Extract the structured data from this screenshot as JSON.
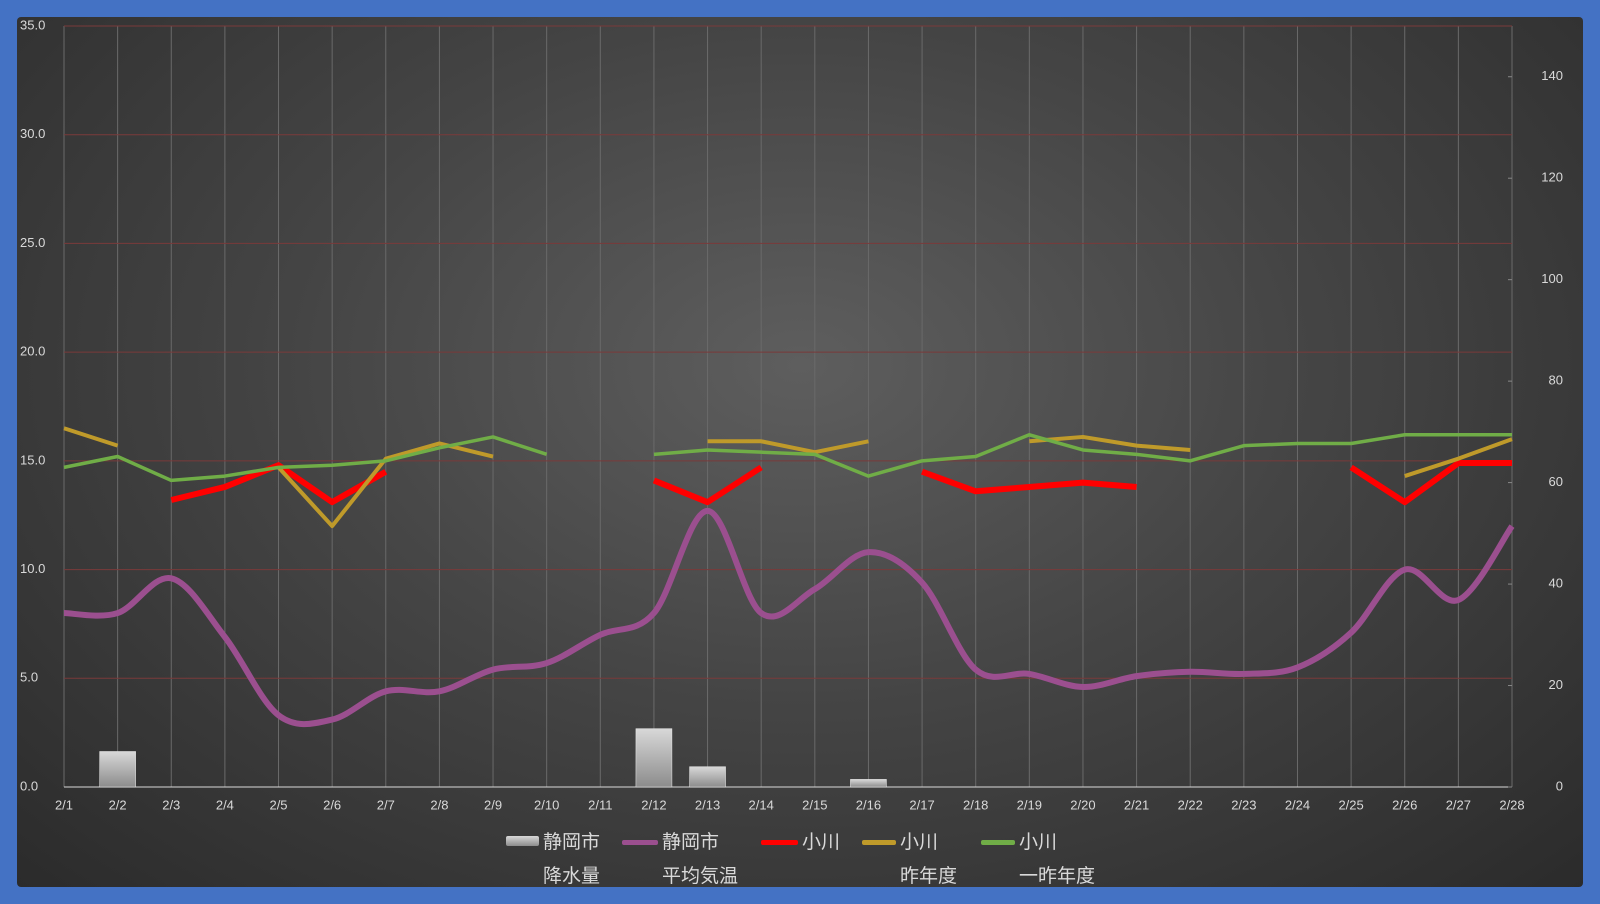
{
  "chart_data": {
    "type": "line",
    "categories": [
      "2/1",
      "2/2",
      "2/3",
      "2/4",
      "2/5",
      "2/6",
      "2/7",
      "2/8",
      "2/9",
      "2/10",
      "2/11",
      "2/12",
      "2/13",
      "2/14",
      "2/15",
      "2/16",
      "2/17",
      "2/18",
      "2/19",
      "2/20",
      "2/21",
      "2/22",
      "2/23",
      "2/24",
      "2/25",
      "2/26",
      "2/27",
      "2/28"
    ],
    "ylim": [
      0,
      35
    ],
    "yticks": [
      {
        "value": 0,
        "label": "0.0"
      },
      {
        "value": 5,
        "label": "5.0"
      },
      {
        "value": 10,
        "label": "10.0"
      },
      {
        "value": 15,
        "label": "15.0"
      },
      {
        "value": 20,
        "label": "20.0"
      },
      {
        "value": 25,
        "label": "25.0"
      },
      {
        "value": 30,
        "label": "30.0"
      },
      {
        "value": 35,
        "label": "35.0"
      }
    ],
    "y2lim": [
      0,
      150
    ],
    "y2ticks": [
      0,
      20,
      40,
      60,
      80,
      100,
      120,
      140
    ],
    "grid": true,
    "legend": "bottom",
    "series": [
      {
        "name": "静岡市\n降水量",
        "type": "bar",
        "axis": "y2",
        "color": "#bfbfbf",
        "values": [
          0,
          7,
          0,
          0,
          0,
          0,
          0,
          0,
          0,
          0,
          0,
          11.5,
          4,
          0,
          0,
          1.5,
          0,
          0,
          0,
          0,
          0,
          0,
          0,
          0,
          0,
          0,
          0,
          0
        ]
      },
      {
        "name": "静岡市\n平均気温",
        "type": "line",
        "smooth": true,
        "color": "#9b4f8f",
        "values": [
          8.0,
          8.0,
          9.6,
          6.9,
          3.3,
          3.1,
          4.4,
          4.4,
          5.4,
          5.7,
          7.0,
          8.0,
          12.7,
          8.0,
          9.1,
          10.8,
          9.4,
          5.4,
          5.2,
          4.6,
          5.1,
          5.3,
          5.2,
          5.5,
          7.1,
          10.0,
          8.6,
          12.0
        ]
      },
      {
        "name": "小川",
        "type": "line",
        "color": "#ff0000",
        "values": [
          null,
          null,
          13.2,
          13.8,
          14.8,
          13.1,
          14.5,
          null,
          null,
          null,
          null,
          14.1,
          13.1,
          14.7,
          null,
          null,
          14.5,
          13.6,
          13.8,
          14.0,
          13.8,
          null,
          null,
          null,
          14.7,
          13.1,
          14.9,
          14.9
        ]
      },
      {
        "name": "小川\n昨年度",
        "type": "line",
        "color": "#bf9a2a",
        "values": [
          16.5,
          15.7,
          null,
          null,
          14.7,
          12.0,
          15.1,
          15.8,
          15.2,
          null,
          null,
          null,
          15.9,
          15.9,
          15.4,
          15.9,
          null,
          null,
          15.9,
          16.1,
          15.7,
          15.5,
          null,
          null,
          null,
          14.3,
          15.1,
          16.0
        ]
      },
      {
        "name": "小川\n一昨年度",
        "type": "line",
        "color": "#70ad47",
        "values": [
          14.7,
          15.2,
          14.1,
          14.3,
          14.7,
          14.8,
          15.0,
          15.6,
          16.1,
          15.3,
          null,
          15.3,
          15.5,
          15.4,
          15.3,
          14.3,
          15.0,
          15.2,
          16.2,
          15.5,
          15.3,
          15.0,
          15.7,
          15.8,
          15.8,
          16.2,
          16.2,
          16.2
        ]
      }
    ]
  }
}
